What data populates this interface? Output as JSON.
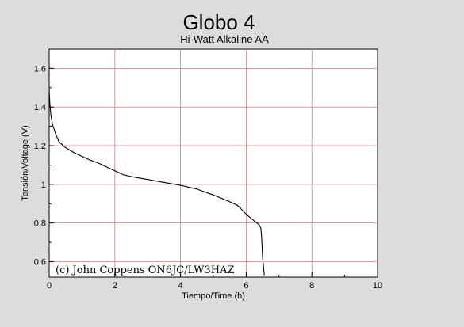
{
  "chart_data": {
    "type": "line",
    "title": "Globo 4",
    "subtitle": "Hi-Watt Alkaline AA",
    "xlabel": "Tiempo/Time (h)",
    "ylabel": "Tensión/Voltage (V)",
    "xlim": [
      0,
      10
    ],
    "ylim": [
      0.52,
      1.7
    ],
    "x_ticks": [
      0,
      2,
      4,
      6,
      8,
      10
    ],
    "y_ticks": [
      0.6,
      0.8,
      1,
      1.2,
      1.4,
      1.6
    ],
    "x_tick_labels": [
      "0",
      "2",
      "4",
      "6",
      "8",
      "10"
    ],
    "y_tick_labels": [
      "0.6",
      "0.8",
      "1",
      "1.2",
      "1.4",
      "1.6"
    ],
    "grid": true,
    "annotation": "(c) John Coppens ON6JC/LW3HAZ",
    "colors": {
      "background": "#dcdcdc",
      "plot_area": "#ffffff",
      "grid": "#d08080",
      "line": "#000000"
    },
    "series": [
      {
        "x": [
          0,
          0.02,
          0.05,
          0.1,
          0.2,
          0.3,
          0.5,
          0.75,
          1.0,
          1.25,
          1.5,
          1.75,
          2.0,
          2.25,
          2.5,
          3.0,
          3.5,
          4.0,
          4.5,
          5.0,
          5.5,
          5.75,
          6.0,
          6.25,
          6.4,
          6.45,
          6.47,
          6.5,
          6.55
        ],
        "y": [
          1.49,
          1.42,
          1.36,
          1.31,
          1.26,
          1.22,
          1.19,
          1.165,
          1.145,
          1.125,
          1.11,
          1.09,
          1.07,
          1.05,
          1.04,
          1.025,
          1.01,
          0.995,
          0.975,
          0.945,
          0.91,
          0.89,
          0.845,
          0.81,
          0.79,
          0.77,
          0.72,
          0.62,
          0.53
        ]
      }
    ]
  }
}
